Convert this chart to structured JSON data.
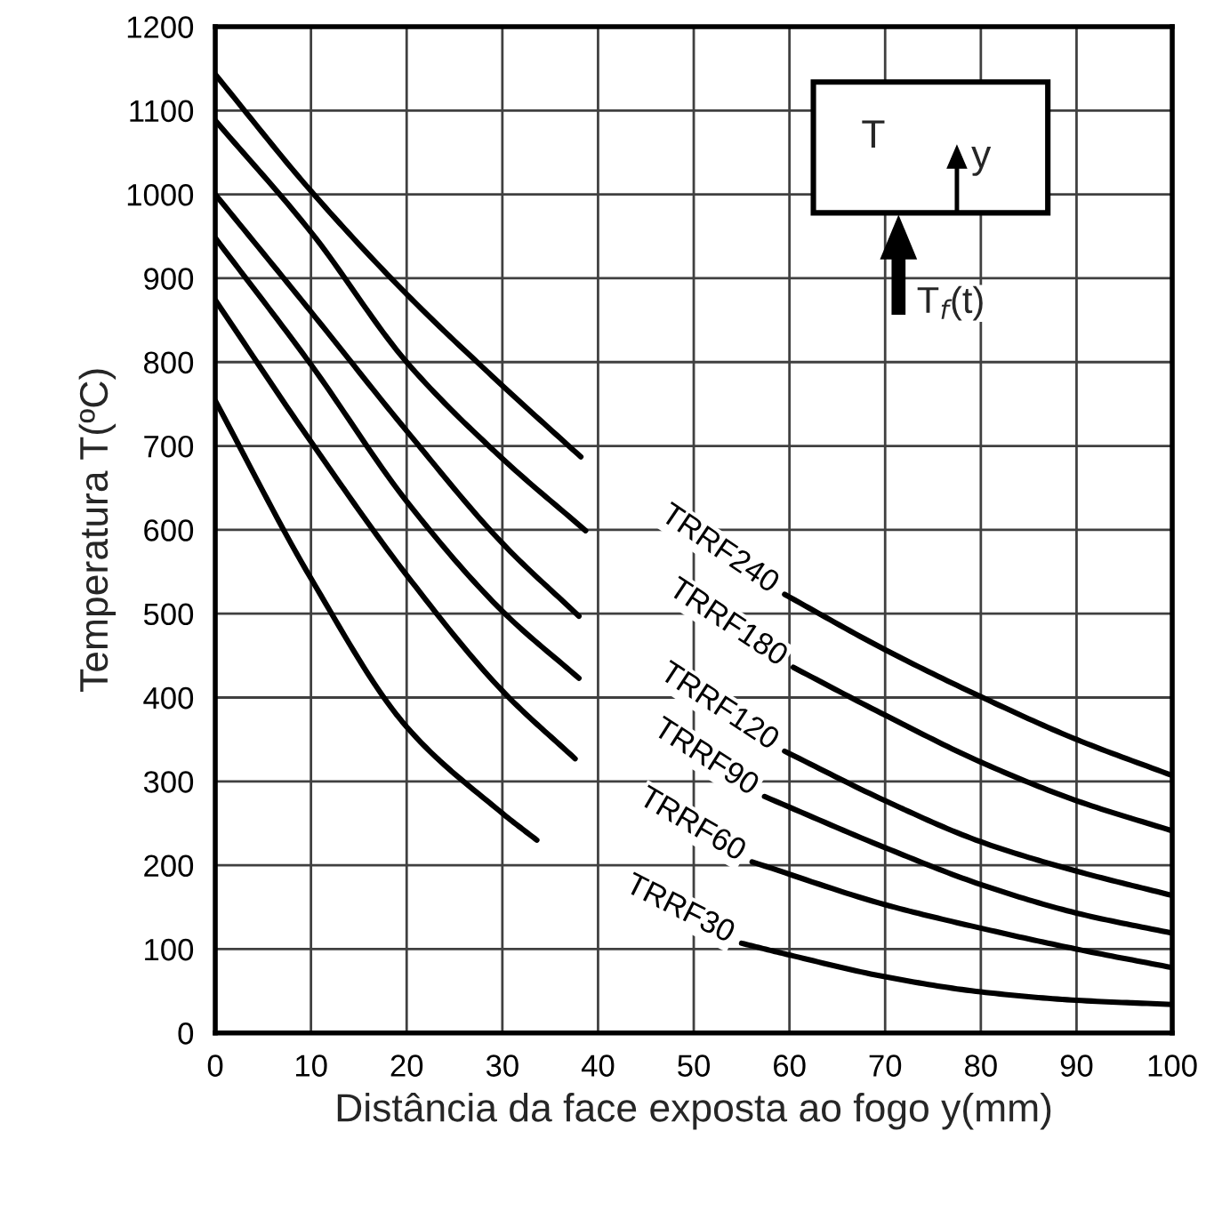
{
  "chart_data": {
    "type": "line",
    "xlabel": "Distância da face exposta ao fogo y(mm)",
    "ylabel": "Temperatura T(ºC)",
    "xlim": [
      0,
      100
    ],
    "xticks": [
      0,
      10,
      20,
      30,
      40,
      50,
      60,
      70,
      80,
      90,
      100
    ],
    "ylim": [
      0,
      1200
    ],
    "yticks": [
      0,
      100,
      200,
      300,
      400,
      500,
      600,
      700,
      800,
      900,
      1000,
      1100,
      1200
    ],
    "grid": true,
    "legend": false,
    "marker": "none",
    "line_style": "solid",
    "series": [
      {
        "name": "TRRF240",
        "color": "#000000",
        "x": [
          0,
          10,
          20,
          30,
          38.2,
          49,
          59.5,
          70,
          80,
          90,
          100
        ],
        "values": [
          1143,
          1004,
          881,
          772,
          687,
          null,
          523,
          457,
          401,
          350,
          307
        ]
      },
      {
        "name": "TRRF180",
        "color": "#000000",
        "x": [
          0,
          10,
          20,
          30,
          38.7,
          49,
          60.4,
          70,
          80,
          90,
          100
        ],
        "values": [
          1088,
          955,
          800,
          685,
          599,
          null,
          436,
          379,
          323,
          277,
          241
        ]
      },
      {
        "name": "TRRF120",
        "color": "#000000",
        "x": [
          0,
          10,
          20,
          30,
          38.0,
          49,
          59.5,
          70,
          80,
          90,
          100
        ],
        "values": [
          1000,
          860,
          718,
          584,
          497,
          null,
          336,
          277,
          228,
          193,
          164
        ]
      },
      {
        "name": "TRRF90",
        "color": "#000000",
        "x": [
          0,
          10,
          20,
          30,
          38.0,
          47,
          57.4,
          70,
          80,
          90,
          100
        ],
        "values": [
          948,
          797,
          634,
          503,
          423,
          null,
          282,
          221,
          177,
          143,
          119
        ]
      },
      {
        "name": "TRRF60",
        "color": "#000000",
        "x": [
          0,
          10,
          20,
          30,
          37.6,
          46,
          56.1,
          70,
          80,
          90,
          100
        ],
        "values": [
          874,
          705,
          546,
          408,
          327,
          null,
          204,
          153,
          125,
          100,
          78
        ]
      },
      {
        "name": "TRRF30",
        "color": "#000000",
        "x": [
          0,
          10,
          20,
          30,
          33.6,
          44,
          55,
          60,
          70,
          80,
          90,
          100
        ],
        "values": [
          754,
          542,
          365,
          262,
          230,
          null,
          107,
          93,
          67,
          49,
          39,
          34
        ]
      }
    ],
    "annotations": [
      "T",
      "y",
      "T$_{f}$(t)"
    ]
  }
}
